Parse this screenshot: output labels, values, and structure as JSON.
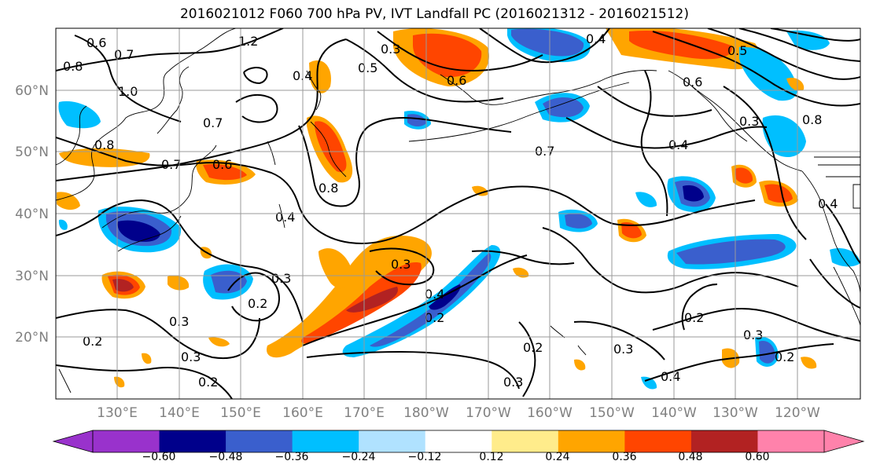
{
  "title": "2016021012 F060 700 hPa PV, IVT Landfall PC (2016021312 - 2016021512)",
  "lat_ticks": [
    "60°N",
    "50°N",
    "40°N",
    "30°N",
    "20°N"
  ],
  "lon_ticks": [
    "130°E",
    "140°E",
    "150°E",
    "160°E",
    "170°E",
    "180°W",
    "170°W",
    "160°W",
    "150°W",
    "140°W",
    "130°W",
    "120°W"
  ],
  "colorbar": {
    "tick_labels": [
      "−0.60",
      "−0.48",
      "−0.36",
      "−0.24",
      "−0.12",
      "0.12",
      "0.24",
      "0.36",
      "0.48",
      "0.60"
    ],
    "colors": [
      "#9932cc",
      "#00008b",
      "#3a5fcd",
      "#00bfff",
      "#b0e2ff",
      "#ffffff",
      "#ffec8b",
      "#ffa500",
      "#ff4500",
      "#b22222",
      "#ff82ab"
    ]
  },
  "contour_labels": [
    "0.6",
    "0.7",
    "0.8",
    "1.0",
    "1.2",
    "0.4",
    "0.5",
    "0.3",
    "0.6",
    "0.4",
    "0.5",
    "0.6",
    "0.8",
    "0.7",
    "0.8",
    "0.7",
    "0.6",
    "0.8",
    "0.4",
    "0.7",
    "0.4",
    "0.3",
    "0.4",
    "0.2",
    "0.3",
    "0.3",
    "0.2",
    "0.2",
    "0.3",
    "0.2",
    "0.3",
    "0.2",
    "0.3",
    "0.4",
    "0.2",
    "0.3",
    "0.2",
    "0.4",
    "0.3"
  ]
}
